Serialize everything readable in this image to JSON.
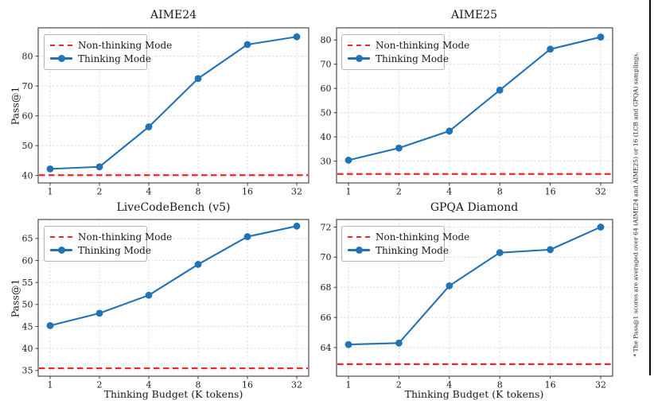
{
  "figure": {
    "footnote": "* The Pass@1 scores are averaged over 64 (AIME24 and AIME25) or 16 (LCB and GPQA) samplings.",
    "colors": {
      "thinking": "#2173b4",
      "non_thinking": "#ed2626",
      "grid": "#d4d4d4",
      "spine": "#3c3c3c",
      "text": "#1a1a1a"
    }
  },
  "legend": {
    "non_thinking": "Non-thinking Mode",
    "thinking": "Thinking Mode"
  },
  "shared": {
    "xlabel": "Thinking Budget (K tokens)",
    "ylabel": "Pass@1"
  },
  "chart_data": [
    {
      "type": "line",
      "title": "AIME24",
      "x": [
        1,
        2,
        4,
        8,
        16,
        32
      ],
      "x_scale": "log2",
      "series": [
        {
          "name": "Thinking Mode",
          "values": [
            42.2,
            42.9,
            56.3,
            72.5,
            83.9,
            86.5
          ],
          "style": "solid-circle-markers",
          "color": "#2173b4"
        },
        {
          "name": "Non-thinking Mode",
          "hline": 40.1,
          "style": "dashed-horizontal",
          "color": "#ed2626"
        }
      ],
      "yticks": [
        40,
        50,
        60,
        70,
        80
      ],
      "ylim": [
        37.5,
        89.5
      ],
      "grid": true,
      "legend_position": "upper left"
    },
    {
      "type": "line",
      "title": "AIME25",
      "x": [
        1,
        2,
        4,
        8,
        16,
        32
      ],
      "x_scale": "log2",
      "series": [
        {
          "name": "Thinking Mode",
          "values": [
            30.4,
            35.4,
            42.4,
            59.3,
            76.2,
            81.2
          ],
          "style": "solid-circle-markers",
          "color": "#2173b4"
        },
        {
          "name": "Non-thinking Mode",
          "hline": 24.7,
          "style": "dashed-horizontal",
          "color": "#ed2626"
        }
      ],
      "yticks": [
        30,
        40,
        50,
        60,
        70,
        80
      ],
      "ylim": [
        21.0,
        85.0
      ],
      "grid": true,
      "legend_position": "upper left"
    },
    {
      "type": "line",
      "title": "LiveCodeBench (v5)",
      "x": [
        1,
        2,
        4,
        8,
        16,
        32
      ],
      "x_scale": "log2",
      "series": [
        {
          "name": "Thinking Mode",
          "values": [
            45.2,
            48.0,
            52.1,
            59.1,
            65.4,
            67.8
          ],
          "style": "solid-circle-markers",
          "color": "#2173b4"
        },
        {
          "name": "Non-thinking Mode",
          "hline": 35.5,
          "style": "dashed-horizontal",
          "color": "#ed2626"
        }
      ],
      "yticks": [
        35,
        40,
        45,
        50,
        55,
        60,
        65
      ],
      "ylim": [
        33.7,
        69.3
      ],
      "grid": true,
      "legend_position": "upper left"
    },
    {
      "type": "line",
      "title": "GPQA Diamond",
      "x": [
        1,
        2,
        4,
        8,
        16,
        32
      ],
      "x_scale": "log2",
      "series": [
        {
          "name": "Thinking Mode",
          "values": [
            64.2,
            64.3,
            68.1,
            70.3,
            70.5,
            72.0
          ],
          "style": "solid-circle-markers",
          "color": "#2173b4"
        },
        {
          "name": "Non-thinking Mode",
          "hline": 62.9,
          "style": "dashed-horizontal",
          "color": "#ed2626"
        }
      ],
      "yticks": [
        64,
        66,
        68,
        70,
        72
      ],
      "ylim": [
        62.1,
        72.5
      ],
      "grid": true,
      "legend_position": "upper left"
    }
  ]
}
